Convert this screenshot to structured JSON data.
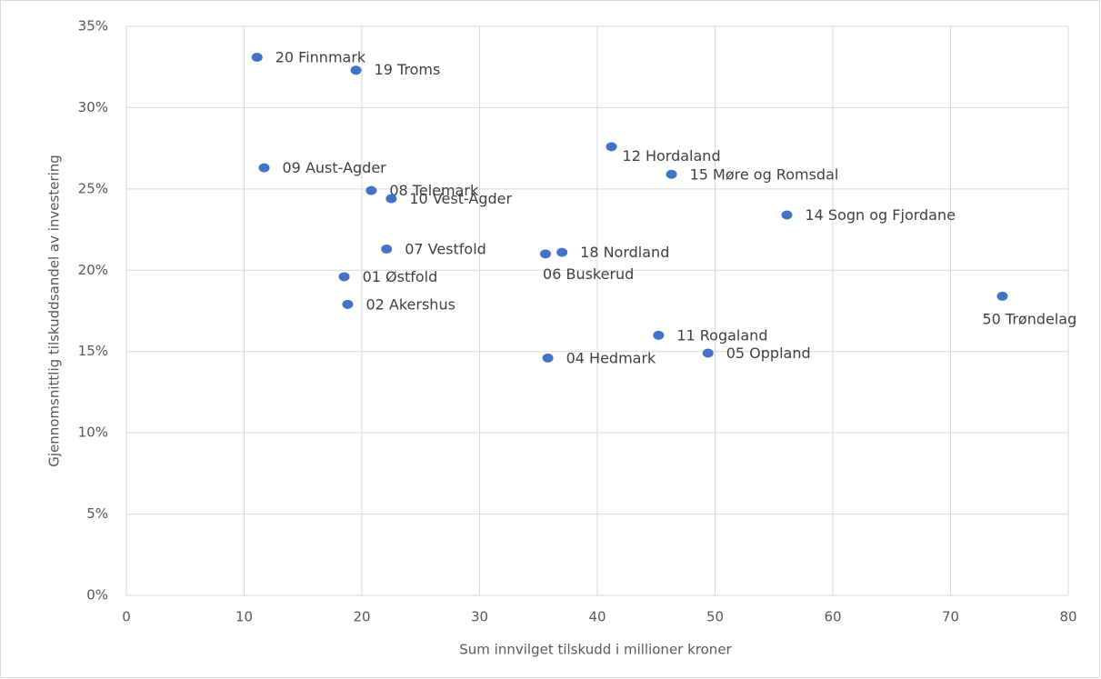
{
  "chart_data": {
    "type": "scatter",
    "xlabel": "Sum innvilget tilskudd i millioner kroner",
    "ylabel": "Gjennomsnittlig tilskuddsandel av investering",
    "series": [
      {
        "color": "#4472c4",
        "labels": [
          "20 Finnmark",
          "19 Troms",
          "09 Aust-Agder",
          "08 Telemark",
          "10 Vest-Agder",
          "07 Vestfold",
          "01 Østfold",
          "02 Akershus",
          "06 Buskerud",
          "18 Nordland",
          "12 Hordaland",
          "15 Møre og Romsdal",
          "14 Sogn og Fjordane",
          "50 Trøndelag",
          "11 Rogaland",
          "05 Oppland",
          "04 Hedmark"
        ],
        "x": [
          11.1,
          19.5,
          11.7,
          20.8,
          22.5,
          22.1,
          18.5,
          18.8,
          35.6,
          37.0,
          41.2,
          46.3,
          56.1,
          74.4,
          45.2,
          49.4,
          35.8
        ],
        "values": [
          33.1,
          32.3,
          26.3,
          24.9,
          24.4,
          21.3,
          19.6,
          17.9,
          21.0,
          21.1,
          27.6,
          25.9,
          23.4,
          18.4,
          16.0,
          14.9,
          14.6
        ]
      }
    ],
    "xlim": [
      0,
      80
    ],
    "xticks": [
      0,
      10,
      20,
      30,
      40,
      50,
      60,
      70,
      80
    ],
    "ylim": [
      0,
      35
    ],
    "yticks": [
      {
        "value": 0,
        "label": "0%"
      },
      {
        "value": 5,
        "label": "5%"
      },
      {
        "value": 10,
        "label": "10%"
      },
      {
        "value": 15,
        "label": "15%"
      },
      {
        "value": 20,
        "label": "20%"
      },
      {
        "value": 25,
        "label": "25%"
      },
      {
        "value": 30,
        "label": "30%"
      },
      {
        "value": 35,
        "label": "35%"
      }
    ],
    "grid": true
  }
}
